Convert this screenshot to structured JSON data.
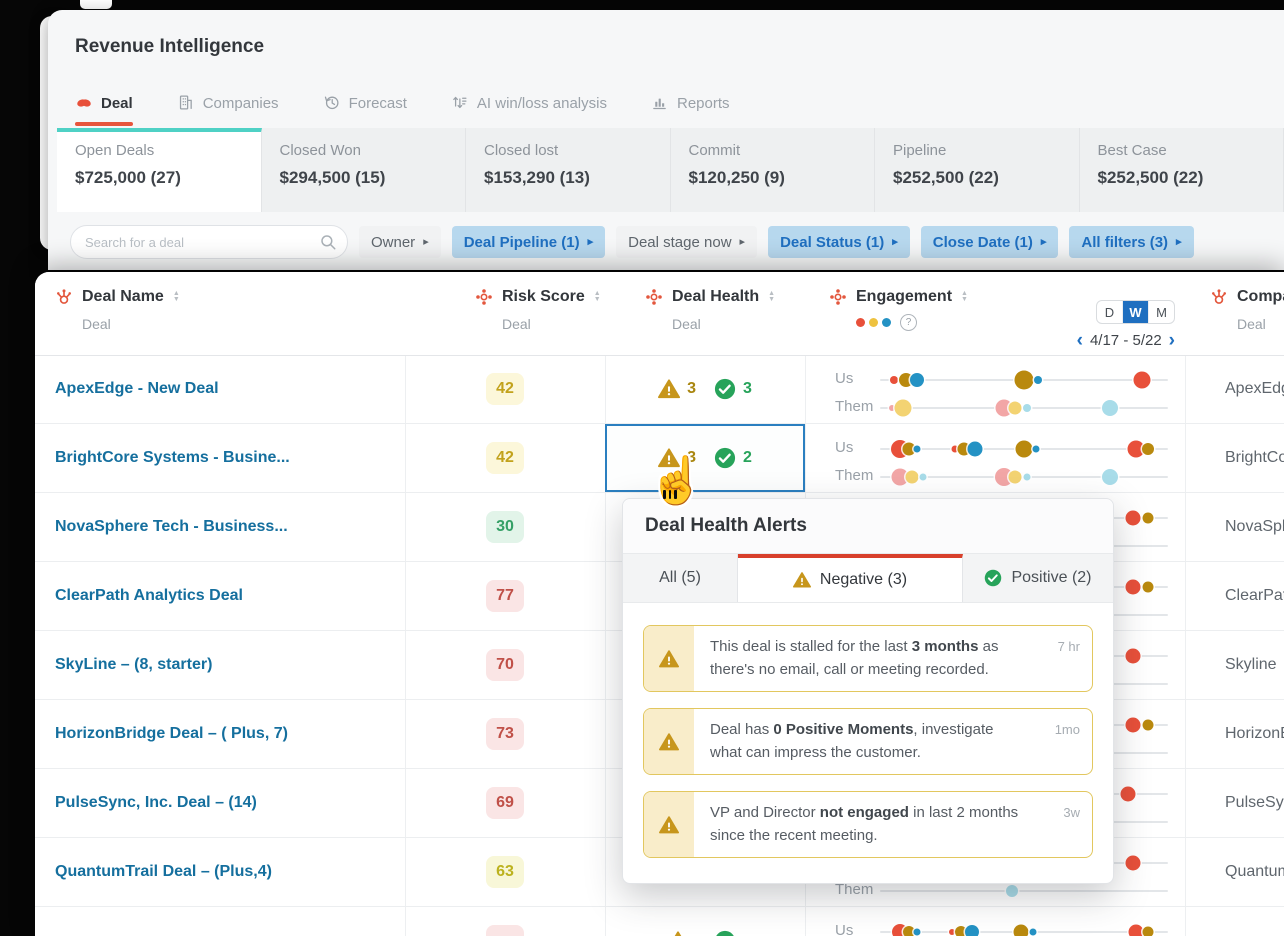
{
  "app": {
    "title": "Revenue Intelligence"
  },
  "nav": {
    "tabs": [
      {
        "label": "Deal",
        "icon": "deal-icon",
        "active": true
      },
      {
        "label": "Companies",
        "icon": "companies-icon",
        "active": false
      },
      {
        "label": "Forecast",
        "icon": "forecast-icon",
        "active": false
      },
      {
        "label": "AI win/loss analysis",
        "icon": "winloss-icon",
        "active": false
      },
      {
        "label": "Reports",
        "icon": "reports-icon",
        "active": false
      }
    ]
  },
  "summary": {
    "cards": [
      {
        "label": "Open Deals",
        "value": "$725,000 (27)",
        "active": true
      },
      {
        "label": "Closed Won",
        "value": "$294,500 (15)",
        "active": false
      },
      {
        "label": "Closed lost",
        "value": "$153,290 (13)",
        "active": false
      },
      {
        "label": "Commit",
        "value": "$120,250 (9)",
        "active": false
      },
      {
        "label": "Pipeline",
        "value": "$252,500 (22)",
        "active": false
      },
      {
        "label": "Best Case",
        "value": "$252,500 (22)",
        "active": false
      }
    ]
  },
  "filters": {
    "search_placeholder": "Search for a deal",
    "chips": [
      {
        "label": "Owner",
        "variant": "plain"
      },
      {
        "label": "Deal Pipeline (1)",
        "variant": "blue"
      },
      {
        "label": "Deal stage now",
        "variant": "plain"
      },
      {
        "label": "Deal Status (1)",
        "variant": "blue"
      },
      {
        "label": "Close Date (1)",
        "variant": "blue"
      },
      {
        "label": "All filters (3)",
        "variant": "blue"
      }
    ]
  },
  "table": {
    "columns": [
      {
        "label": "Deal Name",
        "sub": "Deal",
        "icon": "sprocket-icon"
      },
      {
        "label": "Risk Score",
        "sub": "Deal",
        "icon": "flower-icon"
      },
      {
        "label": "Deal Health",
        "sub": "Deal",
        "icon": "flower-icon"
      },
      {
        "label": "Engagement",
        "sub": "",
        "icon": "flower-icon"
      },
      {
        "label": "Company",
        "sub": "Deal",
        "icon": "sprocket-icon"
      }
    ],
    "engagement_header": {
      "toggle_options": [
        "D",
        "W",
        "M"
      ],
      "toggle_active": "W",
      "date_range": "4/17 - 5/22",
      "prev_icon": "chevron-left-icon",
      "next_icon": "chevron-right-icon",
      "legend_colors": [
        "#e8503a",
        "#eec23f",
        "#2492c4"
      ],
      "help_icon": "?"
    },
    "row_labels": {
      "us": "Us",
      "them": "Them"
    },
    "rows": [
      {
        "name": "ApexEdge - New Deal",
        "risk": {
          "value": "42",
          "level": "yellow"
        },
        "health": {
          "neg": "3",
          "pos": "3"
        },
        "health_selected": false,
        "company": "ApexEdge",
        "eng": {
          "us": [
            [
              5,
              "red",
              8
            ],
            [
              9,
              "olive",
              14
            ],
            [
              13,
              "blue",
              14
            ],
            [
              50,
              "olive",
              19
            ],
            [
              55,
              "blue",
              8
            ],
            [
              91,
              "red",
              17
            ]
          ],
          "them": [
            [
              4,
              "pink",
              6
            ],
            [
              8,
              "yellow",
              17
            ],
            [
              43,
              "pink",
              17
            ],
            [
              47,
              "yellow",
              13
            ],
            [
              51,
              "lblue",
              8
            ],
            [
              80,
              "lblue",
              16
            ]
          ]
        }
      },
      {
        "name": "BrightCore Systems - Busine...",
        "risk": {
          "value": "42",
          "level": "yellow"
        },
        "health": {
          "neg": "3",
          "pos": "2"
        },
        "health_selected": true,
        "company": "BrightCore",
        "eng": {
          "us": [
            [
              7,
              "red",
              18
            ],
            [
              10,
              "olive",
              13
            ],
            [
              13,
              "blue",
              7
            ],
            [
              26,
              "red",
              7
            ],
            [
              29,
              "olive",
              13
            ],
            [
              33,
              "blue",
              15
            ],
            [
              50,
              "olive",
              17
            ],
            [
              54,
              "blue",
              7
            ],
            [
              89,
              "red",
              17
            ],
            [
              93,
              "olive",
              12
            ]
          ],
          "them": [
            [
              7,
              "pink",
              17
            ],
            [
              11,
              "yellow",
              13
            ],
            [
              15,
              "lblue",
              7
            ],
            [
              43,
              "pink",
              18
            ],
            [
              47,
              "yellow",
              13
            ],
            [
              51,
              "lblue",
              7
            ],
            [
              80,
              "lblue",
              16
            ]
          ]
        }
      },
      {
        "name": "NovaSphere Tech - Business...",
        "risk": {
          "value": "30",
          "level": "green"
        },
        "health": null,
        "health_selected": false,
        "company": "NovaSphere",
        "eng": {
          "us": [
            [
              88,
              "red",
              15
            ],
            [
              93,
              "olive",
              11
            ]
          ],
          "them": []
        }
      },
      {
        "name": "ClearPath Analytics Deal",
        "risk": {
          "value": "77",
          "level": "red"
        },
        "health": null,
        "health_selected": false,
        "company": "ClearPath",
        "eng": {
          "us": [
            [
              88,
              "red",
              15
            ],
            [
              93,
              "olive",
              11
            ]
          ],
          "them": []
        }
      },
      {
        "name": "SkyLine – (8, starter)",
        "risk": {
          "value": "70",
          "level": "red"
        },
        "health": null,
        "health_selected": false,
        "company": "Skyline",
        "eng": {
          "us": [
            [
              88,
              "red",
              15
            ]
          ],
          "them": []
        }
      },
      {
        "name": "HorizonBridge Deal – ( Plus, 7)",
        "risk": {
          "value": "73",
          "level": "red"
        },
        "health": null,
        "health_selected": false,
        "company": "HorizonBridge",
        "eng": {
          "us": [
            [
              88,
              "red",
              15
            ],
            [
              93,
              "olive",
              11
            ]
          ],
          "them": []
        }
      },
      {
        "name": "PulseSync, Inc. Deal – (14)",
        "risk": {
          "value": "69",
          "level": "red"
        },
        "health": null,
        "health_selected": false,
        "company": "PulseSync",
        "eng": {
          "us": [
            [
              86,
              "red",
              15
            ]
          ],
          "them": []
        }
      },
      {
        "name": "QuantumTrail Deal – (Plus,4)",
        "risk": {
          "value": "63",
          "level": "lime"
        },
        "health": null,
        "health_selected": false,
        "company": "QuantumTrail",
        "eng": {
          "us": [
            [
              88,
              "red",
              15
            ]
          ],
          "them": [
            [
              46,
              "lblue",
              12
            ]
          ]
        }
      },
      {
        "name": "",
        "risk": {
          "value": "",
          "level": "red"
        },
        "health": {
          "neg": "",
          "pos": ""
        },
        "health_selected": false,
        "company": "",
        "eng": {
          "us": [
            [
              7,
              "red",
              16
            ],
            [
              10,
              "olive",
              12
            ],
            [
              13,
              "blue",
              7
            ],
            [
              25,
              "red",
              6
            ],
            [
              28,
              "olive",
              12
            ],
            [
              32,
              "blue",
              14
            ],
            [
              49,
              "olive",
              15
            ],
            [
              53,
              "blue",
              7
            ],
            [
              89,
              "red",
              15
            ],
            [
              93,
              "olive",
              11
            ]
          ],
          "them": []
        }
      }
    ]
  },
  "popup": {
    "title": "Deal Health Alerts",
    "tabs": [
      {
        "label": "All (5)",
        "icon": null,
        "active": false
      },
      {
        "label": "Negative (3)",
        "icon": "warning-icon",
        "active": true
      },
      {
        "label": "Positive (2)",
        "icon": "check-icon",
        "active": false
      }
    ],
    "alerts": [
      {
        "segments": [
          {
            "t": "This deal is stalled for the last ",
            "b": false
          },
          {
            "t": "3 months",
            "b": true
          },
          {
            "t": " as there's no email, call or meeting recorded.",
            "b": false
          }
        ],
        "age": "7 hr"
      },
      {
        "segments": [
          {
            "t": "Deal has ",
            "b": false
          },
          {
            "t": "0 Positive Moments",
            "b": true
          },
          {
            "t": ", investigate what can impress the customer.",
            "b": false
          }
        ],
        "age": "1mo"
      },
      {
        "segments": [
          {
            "t": "VP and Director ",
            "b": false
          },
          {
            "t": "not engaged",
            "b": true
          },
          {
            "t": " in last 2 months since the recent meeting.",
            "b": false
          }
        ],
        "age": "3w"
      }
    ]
  },
  "colors": {
    "accent_red": "#e8553c",
    "teal": "#4fd1c5",
    "chip_blue_bg": "#b7d8ee",
    "chip_blue_text": "#1f6fc0",
    "link_blue": "#156f9e",
    "warning": "#c7961c",
    "positive_green": "#27a35a",
    "negative_tab_red": "#d8402c",
    "dots": {
      "red": "#e8503a",
      "olive": "#b9890e",
      "blue": "#2492c4",
      "pink": "#f2a6a6",
      "yellow": "#f3d372",
      "lblue": "#a8dce9"
    }
  }
}
